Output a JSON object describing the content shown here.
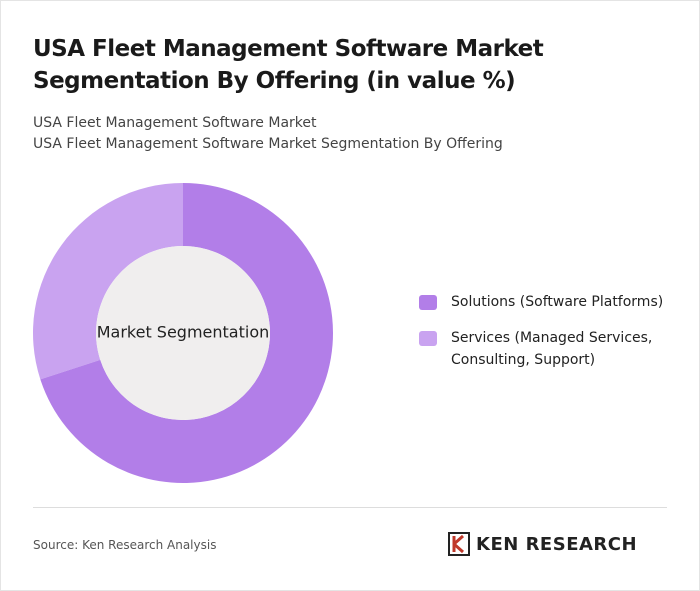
{
  "chart_data": {
    "type": "donut",
    "title": "USA Fleet Management Software Market Segmentation By Offering (in value %)",
    "subtitle": [
      "USA Fleet Management Software Market",
      "USA Fleet Management Software Market Segmentation By Offering"
    ],
    "center_label": "Market Segmentation",
    "categories": [
      "Solutions (Software Platforms)",
      "Services (Managed Services, Consulting, Support)"
    ],
    "values": [
      70,
      30
    ],
    "colors": [
      "#b27ee8",
      "#c9a3f0"
    ]
  },
  "footer": {
    "source": "Source: Ken Research Analysis",
    "logo": "KEN RESEARCH"
  }
}
